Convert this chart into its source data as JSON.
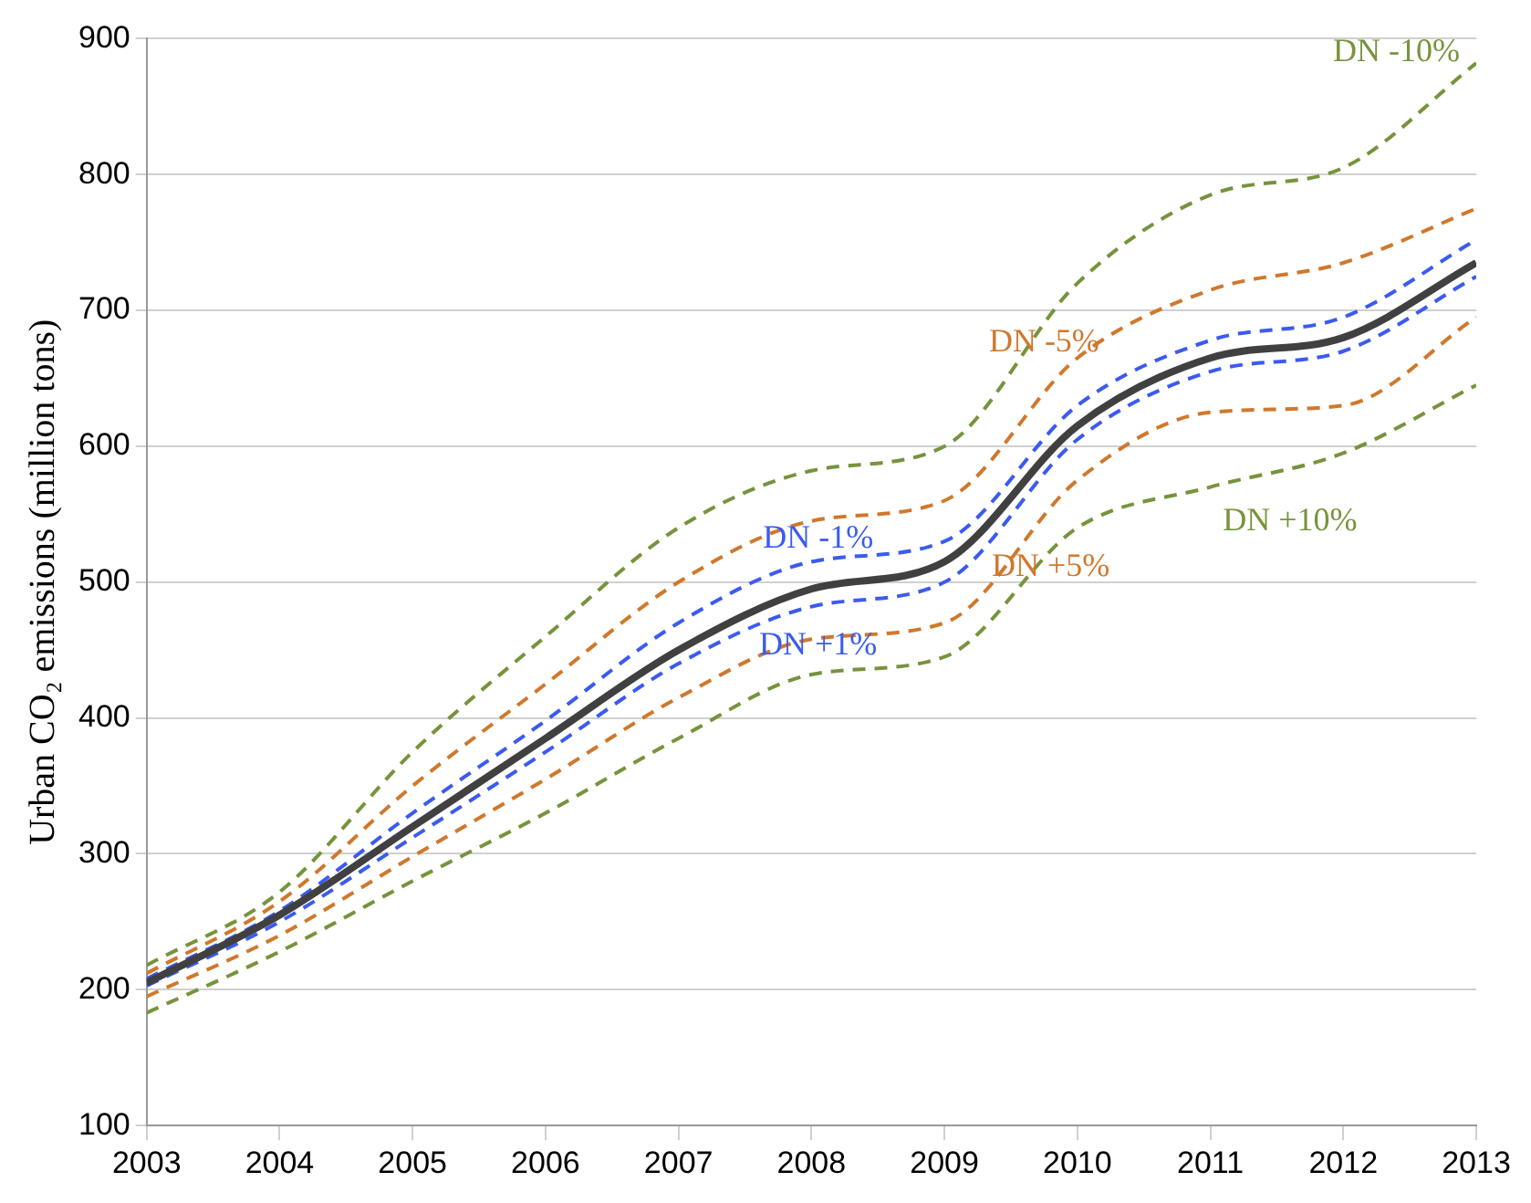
{
  "chart_data": {
    "type": "line",
    "ylabel": "Urban CO₂ emissions (million tons)",
    "x": [
      2003,
      2004,
      2005,
      2006,
      2007,
      2008,
      2009,
      2010,
      2011,
      2012,
      2013
    ],
    "xlim": [
      2003,
      2013
    ],
    "xticks": [
      2003,
      2004,
      2005,
      2006,
      2007,
      2008,
      2009,
      2010,
      2011,
      2012,
      2013
    ],
    "ylim": [
      100,
      900
    ],
    "yticks": [
      100,
      200,
      300,
      400,
      500,
      600,
      700,
      800,
      900
    ],
    "grid": "y",
    "legend": false,
    "marker": "none",
    "series": [
      {
        "name": "DN -10%",
        "color": "#77933c",
        "line_style": "dashed",
        "values": [
          218,
          272,
          375,
          460,
          540,
          582,
          600,
          720,
          785,
          805,
          882
        ]
      },
      {
        "name": "DN -5%",
        "color": "#d0782c",
        "line_style": "dashed",
        "values": [
          212,
          265,
          350,
          425,
          500,
          545,
          560,
          665,
          715,
          735,
          775
        ]
      },
      {
        "name": "DN -1%",
        "color": "#3b5bef",
        "line_style": "dashed",
        "values": [
          208,
          258,
          330,
          398,
          470,
          515,
          530,
          630,
          678,
          695,
          752
        ]
      },
      {
        "color": "#404040",
        "line_style": "solid",
        "values": [
          205,
          255,
          320,
          385,
          450,
          495,
          515,
          615,
          665,
          680,
          735
        ]
      },
      {
        "name": "DN +1%",
        "color": "#3b5bef",
        "line_style": "dashed",
        "values": [
          203,
          250,
          312,
          375,
          440,
          482,
          500,
          605,
          655,
          670,
          725
        ]
      },
      {
        "name": "DN +5%",
        "color": "#d0782c",
        "line_style": "dashed",
        "values": [
          195,
          240,
          298,
          355,
          415,
          458,
          470,
          575,
          625,
          630,
          695
        ]
      },
      {
        "name": "DN +10%",
        "color": "#77933c",
        "line_style": "dashed",
        "values": [
          183,
          228,
          280,
          330,
          385,
          432,
          445,
          540,
          570,
          595,
          645
        ]
      }
    ]
  }
}
